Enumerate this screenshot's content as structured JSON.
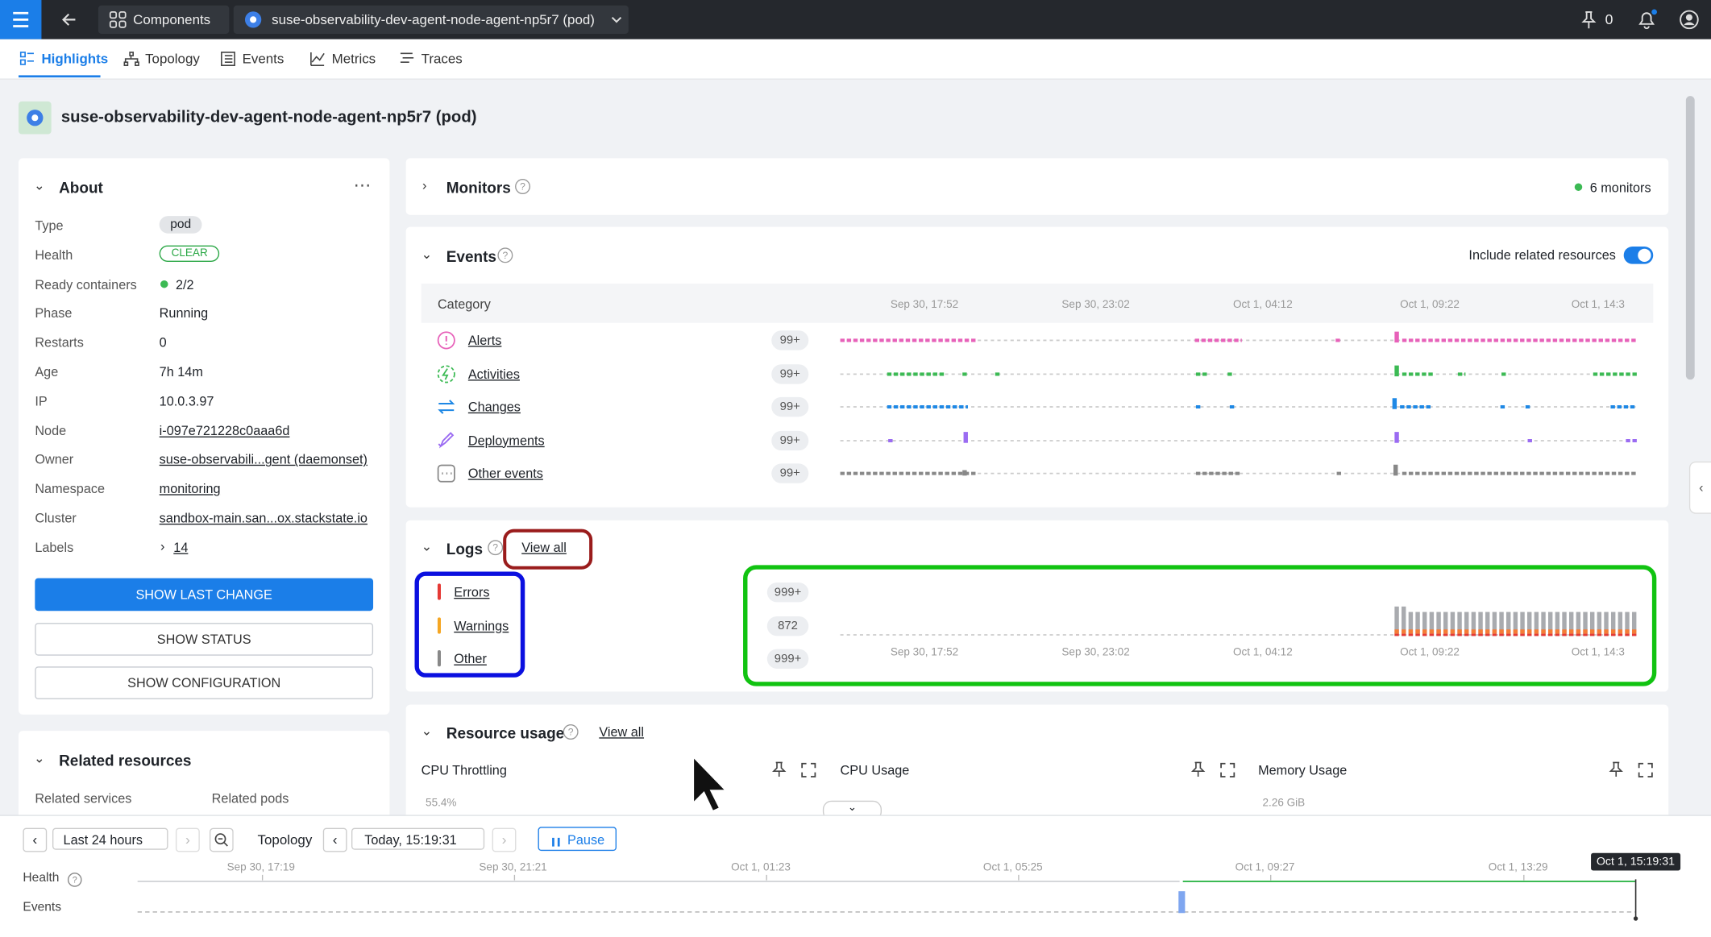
{
  "topbar": {
    "breadcrumb": [
      "Components",
      "suse-observability-dev-agent-node-agent-np5r7 (pod)"
    ],
    "pin_count": "0"
  },
  "tabs": [
    "Highlights",
    "Topology",
    "Events",
    "Metrics",
    "Traces"
  ],
  "page_title": "suse-observability-dev-agent-node-agent-np5r7 (pod)",
  "about": {
    "title": "About",
    "rows": [
      [
        "Type",
        "pod"
      ],
      [
        "Health",
        "CLEAR"
      ],
      [
        "Ready containers",
        "2/2"
      ],
      [
        "Phase",
        "Running"
      ],
      [
        "Restarts",
        "0"
      ],
      [
        "Age",
        "7h 14m"
      ],
      [
        "IP",
        "10.0.3.97"
      ],
      [
        "Node",
        "i-097e721228c0aaa6d"
      ],
      [
        "Owner",
        "suse-observabili...gent (daemonset)"
      ],
      [
        "Namespace",
        "monitoring"
      ],
      [
        "Cluster",
        "sandbox-main.san...ox.stackstate.io"
      ],
      [
        "Labels",
        "14"
      ]
    ],
    "buttons": [
      "SHOW LAST CHANGE",
      "SHOW STATUS",
      "SHOW CONFIGURATION"
    ]
  },
  "related": {
    "title": "Related resources",
    "columns": [
      "Related services",
      "Related pods"
    ]
  },
  "monitors": {
    "title": "Monitors",
    "count": "6 monitors"
  },
  "events": {
    "title": "Events",
    "toggle": "Include related resources",
    "header": "Category",
    "times": [
      "Sep 30, 17:52",
      "Sep 30, 23:02",
      "Oct 1, 04:12",
      "Oct 1, 09:22",
      "Oct 1, 14:3"
    ],
    "rows": [
      {
        "name": "Alerts",
        "count": "99+"
      },
      {
        "name": "Activities",
        "count": "99+"
      },
      {
        "name": "Changes",
        "count": "99+"
      },
      {
        "name": "Deployments",
        "count": "99+"
      },
      {
        "name": "Other events",
        "count": "99+"
      }
    ]
  },
  "logs": {
    "title": "Logs",
    "view_all": "View all",
    "rows": [
      {
        "name": "Errors",
        "count": "999+"
      },
      {
        "name": "Warnings",
        "count": "872"
      },
      {
        "name": "Other",
        "count": "999+"
      }
    ],
    "times": [
      "Sep 30, 17:52",
      "Sep 30, 23:02",
      "Oct 1, 04:12",
      "Oct 1, 09:22",
      "Oct 1, 14:3"
    ]
  },
  "resource": {
    "title": "Resource usage",
    "view_all": "View all",
    "charts": [
      {
        "title": "CPU Throttling",
        "top": "55.4%"
      },
      {
        "title": "CPU Usage"
      },
      {
        "title": "Memory Usage",
        "top": "2.26 GiB"
      }
    ]
  },
  "timeline": {
    "range": "Last 24 hours",
    "mode": "Topology",
    "time": "Today, 15:19:31",
    "pause": "Pause",
    "rows": [
      "Health",
      "Events"
    ],
    "ticks": [
      "Sep 30, 17:19",
      "Sep 30, 21:21",
      "Oct 1, 01:23",
      "Oct 1, 05:25",
      "Oct 1, 09:27",
      "Oct 1, 13:29"
    ],
    "cursor": "Oct 1, 15:19:31"
  }
}
